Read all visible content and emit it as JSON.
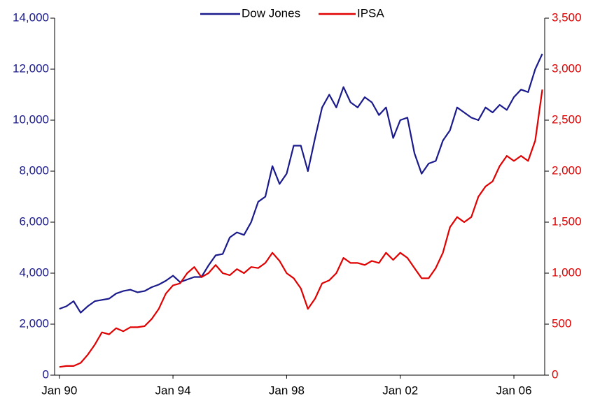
{
  "chart_data": {
    "type": "line",
    "legend": "top",
    "x": [
      "1990-01",
      "1990-04",
      "1990-07",
      "1990-10",
      "1991-01",
      "1991-04",
      "1991-07",
      "1991-10",
      "1992-01",
      "1992-04",
      "1992-07",
      "1992-10",
      "1993-01",
      "1993-04",
      "1993-07",
      "1993-10",
      "1994-01",
      "1994-04",
      "1994-07",
      "1994-10",
      "1995-01",
      "1995-04",
      "1995-07",
      "1995-10",
      "1996-01",
      "1996-04",
      "1996-07",
      "1996-10",
      "1997-01",
      "1997-04",
      "1997-07",
      "1997-10",
      "1998-01",
      "1998-04",
      "1998-07",
      "1998-10",
      "1999-01",
      "1999-04",
      "1999-07",
      "1999-10",
      "2000-01",
      "2000-04",
      "2000-07",
      "2000-10",
      "2001-01",
      "2001-04",
      "2001-07",
      "2001-10",
      "2002-01",
      "2002-04",
      "2002-07",
      "2002-10",
      "2003-01",
      "2003-04",
      "2003-07",
      "2003-10",
      "2004-01",
      "2004-04",
      "2004-07",
      "2004-10",
      "2005-01",
      "2005-04",
      "2005-07",
      "2005-10",
      "2006-01",
      "2006-04",
      "2006-07",
      "2006-10",
      "2007-01"
    ],
    "xlim": [
      "1989-11",
      "2007-02"
    ],
    "xticks": [
      {
        "value": "1990-01",
        "label": "Jan 90"
      },
      {
        "value": "1994-01",
        "label": "Jan 94"
      },
      {
        "value": "1998-01",
        "label": "Jan 98"
      },
      {
        "value": "2002-01",
        "label": "Jan 02"
      },
      {
        "value": "2006-01",
        "label": "Jan 06"
      }
    ],
    "ylim": [
      0,
      14000
    ],
    "yticks": [
      0,
      {
        "value": 2000,
        "label": "2,000"
      },
      {
        "value": 4000,
        "label": "4,000"
      },
      {
        "value": 6000,
        "label": "6,000"
      },
      {
        "value": 8000,
        "label": "8,000"
      },
      {
        "value": 10000,
        "label": "10,000"
      },
      {
        "value": 12000,
        "label": "12,000"
      },
      {
        "value": 14000,
        "label": "14,000"
      }
    ],
    "y2lim": [
      0,
      3500
    ],
    "y2ticks": [
      0,
      500,
      {
        "value": 1000,
        "label": "1,000"
      },
      {
        "value": 1500,
        "label": "1,500"
      },
      {
        "value": 2000,
        "label": "2,000"
      },
      {
        "value": 2500,
        "label": "2,500"
      },
      {
        "value": 3000,
        "label": "3,000"
      },
      {
        "value": 3500,
        "label": "3,500"
      }
    ],
    "y_color": "#1a1a8c",
    "y2_color": "#e00000",
    "series": [
      {
        "name": "Dow Jones",
        "color": "#1a1a8c",
        "axis": "y",
        "values": [
          2600,
          2700,
          2900,
          2450,
          2700,
          2900,
          2950,
          3000,
          3200,
          3300,
          3350,
          3250,
          3300,
          3450,
          3550,
          3700,
          3900,
          3650,
          3750,
          3850,
          3850,
          4300,
          4700,
          4750,
          5400,
          5600,
          5500,
          6000,
          6800,
          7000,
          8200,
          7500,
          7900,
          9000,
          9000,
          8000,
          9300,
          10500,
          11000,
          10500,
          11300,
          10700,
          10500,
          10900,
          10700,
          10200,
          10500,
          9300,
          10000,
          10100,
          8700,
          7900,
          8300,
          8400,
          9200,
          9600,
          10500,
          10300,
          10100,
          10000,
          10500,
          10300,
          10600,
          10400,
          10900,
          11200,
          11100,
          12000,
          12600
        ]
      },
      {
        "name": "IPSA",
        "color": "#e00000",
        "axis": "y2",
        "values": [
          80,
          90,
          90,
          120,
          200,
          300,
          420,
          400,
          460,
          430,
          470,
          470,
          480,
          550,
          650,
          800,
          880,
          900,
          1000,
          1060,
          960,
          1000,
          1080,
          1000,
          980,
          1040,
          1000,
          1060,
          1050,
          1100,
          1200,
          1120,
          1000,
          950,
          850,
          650,
          750,
          900,
          930,
          1000,
          1150,
          1100,
          1100,
          1080,
          1120,
          1100,
          1200,
          1130,
          1200,
          1150,
          1050,
          950,
          950,
          1050,
          1200,
          1450,
          1550,
          1500,
          1550,
          1750,
          1850,
          1900,
          2050,
          2150,
          2100,
          2150,
          2100,
          2300,
          2800
        ]
      }
    ]
  }
}
